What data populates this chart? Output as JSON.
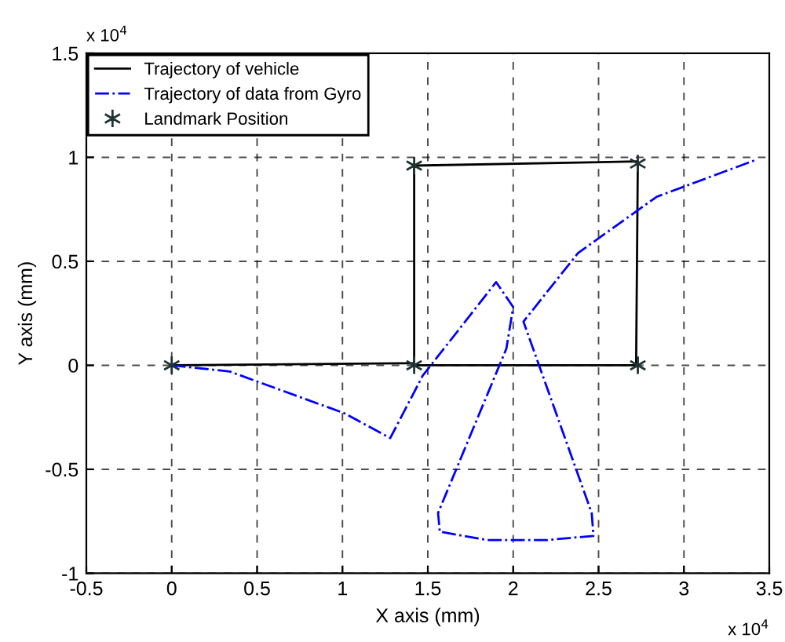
{
  "chart_data": {
    "type": "line",
    "xlabel": "X axis (mm)",
    "ylabel": "Y axis (mm)",
    "annotations": [
      "x 10$^{4}$",
      "x 10$^{4}$"
    ],
    "xlim": [
      -0.5,
      3.5
    ],
    "xticks": [
      -0.5,
      0,
      0.5,
      1,
      1.5,
      2,
      2.5,
      3,
      3.5
    ],
    "ylim": [
      -1,
      1.5
    ],
    "yticks": [
      -1,
      -0.5,
      0,
      0.5,
      1,
      1.5
    ],
    "grid": true,
    "legend": "top left",
    "series": [
      {
        "name": "Trajectory of vehicle",
        "color": "#000000",
        "line_style": "solid",
        "x": [
          0,
          1.42,
          1.42,
          2.73,
          2.72,
          1.42
        ],
        "values": [
          0,
          0.01,
          0.96,
          0.98,
          0,
          0
        ]
      },
      {
        "name": "Trajectory of data from Gyro",
        "color": "#0000ff",
        "line_style": "dashed",
        "x": [
          0,
          0.34,
          1.01,
          1.28,
          1.47,
          1.9,
          2.0,
          1.96,
          1.56,
          1.57,
          1.85,
          2.2,
          2.47,
          2.46,
          2.06,
          2.38,
          2.84,
          3.43
        ],
        "values": [
          0,
          -0.03,
          -0.23,
          -0.35,
          -0.05,
          0.4,
          0.28,
          0.08,
          -0.71,
          -0.8,
          -0.84,
          -0.84,
          -0.82,
          -0.71,
          0.21,
          0.54,
          0.81,
          0.99
        ]
      },
      {
        "name": "Landmark Position",
        "type": "scatter",
        "color": "#1f3333",
        "marker": "cross",
        "x": [
          0,
          1.42,
          1.42,
          2.73,
          2.73
        ],
        "values": [
          0,
          0,
          0.96,
          0.97,
          0
        ]
      }
    ]
  }
}
